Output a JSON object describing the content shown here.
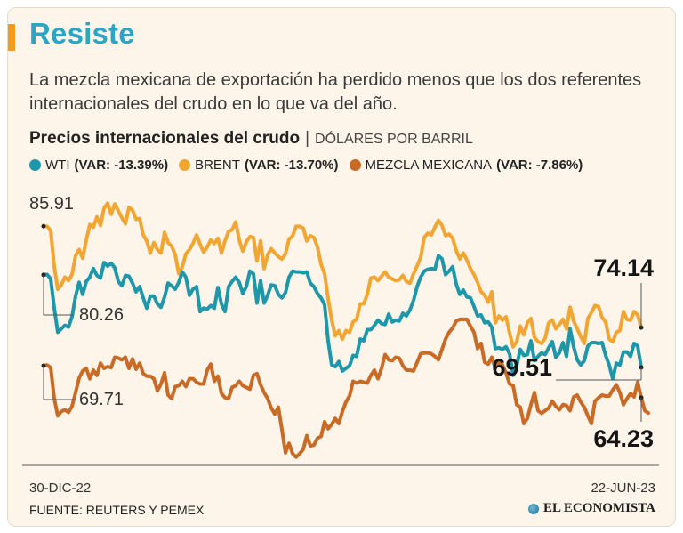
{
  "header": {
    "title": "Resiste",
    "subtitle": "La mezcla mexicana de exportación ha perdido menos que los dos referentes internacionales del crudo en lo que va del año."
  },
  "chart_title": {
    "main": "Precios internacionales del crudo",
    "separator": "|",
    "unit": "DÓLARES POR BARRIL"
  },
  "legend": [
    {
      "name": "WTI",
      "var": "(VAR: -13.39%)",
      "color": "#1f97ab"
    },
    {
      "name": "BRENT",
      "var": "(VAR: -13.70%)",
      "color": "#f3a532"
    },
    {
      "name": "MEZCLA MEXICANA",
      "var": "(VAR: -7.86%)",
      "color": "#c96a25"
    }
  ],
  "chart_data": {
    "type": "line",
    "title": "Precios internacionales del crudo",
    "ylabel": "Dólares por barril",
    "x_start": "30-DIC-22",
    "x_end": "22-JUN-23",
    "ylim": [
      60,
      91
    ],
    "grid": false,
    "series": [
      {
        "name": "BRENT",
        "color": "#f3a532",
        "values": [
          85.91,
          85.9,
          85.4,
          81.2,
          78.6,
          79.1,
          80.0,
          79.6,
          80.3,
          82.5,
          83.2,
          82.2,
          84.3,
          86.1,
          85.8,
          87.0,
          86.0,
          88.0,
          88.6,
          87.3,
          88.5,
          87.7,
          86.9,
          86.2,
          88.1,
          87.8,
          86.7,
          86.8,
          84.9,
          84.2,
          82.8,
          84.0,
          83.2,
          82.8,
          85.2,
          84.0,
          83.6,
          82.6,
          80.4,
          81.2,
          82.7,
          83.2,
          83.9,
          84.9,
          83.8,
          82.9,
          83.5,
          84.3,
          83.9,
          84.5,
          82.8,
          84.2,
          85.3,
          85.5,
          86.4,
          84.3,
          83.0,
          84.1,
          84.7,
          84.6,
          81.9,
          84.2,
          81.0,
          82.6,
          83.3,
          82.8,
          82.4,
          82.1,
          82.7,
          84.4,
          84.8,
          85.9,
          85.9,
          85.7,
          84.2,
          84.8,
          84.6,
          83.5,
          81.5,
          80.4,
          77.5,
          75.0,
          73.2,
          73.8,
          72.8,
          73.8,
          73.6,
          74.8,
          75.1,
          76.9,
          76.9,
          78.0,
          79.9,
          80.0,
          79.6,
          80.1,
          80.6,
          80.0,
          79.8,
          79.6,
          79.7,
          80.2,
          79.5,
          79.3,
          80.4,
          81.3,
          82.3,
          84.6,
          85.1,
          84.9,
          85.8,
          86.6,
          86.0,
          84.8,
          85.0,
          84.5,
          83.1,
          82.1,
          82.8,
          82.0,
          81.0,
          80.3,
          79.4,
          78.3,
          77.9,
          77.1,
          78.3,
          74.7,
          75.5,
          75.0,
          75.4,
          73.5,
          71.9,
          72.5,
          74.3,
          73.3,
          74.7,
          75.2,
          73.0,
          72.5,
          72.3,
          72.9,
          74.7,
          75.0,
          74.0,
          74.5,
          75.1,
          74.0,
          76.5,
          74.9,
          74.0,
          73.1,
          72.3,
          75.2,
          75.9,
          76.7,
          76.6,
          75.3,
          74.8,
          72.8,
          72.5,
          73.6,
          73.8,
          76.0,
          75.1,
          75.0,
          76.0,
          75.6,
          74.14
        ]
      },
      {
        "name": "WTI",
        "color": "#1f97ab",
        "values": [
          80.26,
          80.3,
          79.8,
          76.4,
          73.6,
          74.0,
          74.4,
          74.2,
          75.4,
          77.8,
          79.4,
          78.0,
          79.5,
          80.0,
          81.0,
          80.2,
          79.9,
          81.7,
          81.3,
          81.6,
          81.1,
          79.5,
          79.0,
          80.2,
          80.1,
          79.3,
          78.3,
          78.9,
          77.6,
          76.4,
          77.8,
          77.8,
          76.9,
          76.5,
          77.7,
          79.3,
          79.0,
          78.6,
          79.4,
          80.6,
          80.0,
          77.9,
          78.6,
          78.9,
          76.0,
          76.4,
          76.3,
          76.7,
          76.4,
          78.8,
          76.9,
          76.0,
          78.9,
          79.5,
          80.0,
          79.4,
          78.1,
          78.9,
          80.7,
          80.4,
          77.0,
          79.6,
          77.0,
          77.9,
          79.1,
          79.0,
          78.0,
          77.6,
          78.2,
          80.0,
          80.7,
          80.6,
          80.6,
          80.5,
          80.6,
          79.3,
          78.9,
          78.1,
          77.6,
          76.8,
          72.6,
          69.8,
          69.6,
          70.2,
          69.1,
          69.4,
          69.7,
          70.9,
          70.8,
          72.8,
          72.6,
          73.9,
          73.9,
          74.4,
          75.0,
          74.6,
          74.5,
          75.7,
          74.8,
          75.0,
          74.9,
          75.8,
          75.5,
          76.2,
          77.3,
          78.9,
          80.0,
          80.7,
          80.9,
          81.0,
          80.9,
          82.5,
          82.1,
          80.3,
          80.7,
          81.2,
          79.2,
          78.0,
          78.5,
          77.7,
          77.6,
          76.6,
          75.5,
          75.6,
          74.7,
          74.8,
          74.2,
          71.7,
          71.8,
          71.6,
          71.9,
          71.1,
          68.6,
          69.7,
          71.6,
          70.9,
          71.0,
          72.6,
          70.3,
          70.8,
          71.2,
          71.0,
          71.8,
          72.5,
          70.7,
          71.2,
          72.4,
          70.8,
          74.0,
          71.9,
          70.4,
          69.8,
          70.3,
          72.0,
          72.4,
          72.4,
          72.3,
          72.4,
          70.9,
          69.8,
          68.2,
          70.0,
          69.8,
          71.3,
          71.3,
          70.8,
          72.3,
          72.0,
          69.51
        ]
      },
      {
        "name": "MEZCLA MEXICANA",
        "color": "#c96a25",
        "values": [
          69.71,
          69.8,
          69.5,
          65.9,
          63.9,
          64.4,
          64.6,
          64.3,
          65.0,
          66.6,
          68.3,
          69.1,
          69.4,
          68.2,
          69.2,
          68.6,
          70.0,
          69.4,
          69.6,
          69.5,
          70.7,
          70.6,
          70.4,
          70.7,
          69.4,
          70.5,
          69.3,
          70.0,
          68.8,
          68.5,
          68.5,
          68.2,
          66.8,
          67.6,
          68.9,
          66.3,
          65.9,
          67.3,
          67.4,
          67.9,
          67.3,
          68.2,
          68.2,
          67.8,
          67.6,
          67.6,
          69.2,
          69.9,
          67.9,
          68.5,
          66.5,
          66.0,
          65.9,
          67.2,
          67.4,
          67.9,
          67.4,
          67.2,
          67.0,
          68.6,
          68.8,
          67.5,
          66.6,
          65.9,
          64.8,
          64.1,
          64.9,
          62.3,
          59.6,
          60.7,
          59.5,
          59.1,
          59.5,
          60.0,
          61.6,
          60.4,
          60.5,
          61.3,
          61.5,
          63.2,
          62.4,
          62.9,
          63.6,
          63.0,
          64.4,
          65.5,
          66.2,
          67.9,
          67.7,
          67.9,
          67.8,
          67.7,
          68.6,
          69.2,
          68.2,
          69.4,
          71.0,
          70.4,
          70.3,
          70.7,
          70.6,
          69.7,
          69.2,
          69.2,
          69.1,
          70.1,
          71.1,
          71.2,
          71.2,
          71.1,
          70.8,
          70.4,
          71.6,
          72.8,
          73.6,
          74.1,
          74.9,
          75.1,
          75.1,
          75.1,
          74.3,
          73.6,
          71.7,
          72.3,
          70.1,
          69.9,
          70.7,
          69.4,
          70.2,
          69.8,
          68.9,
          67.6,
          67.4,
          65.2,
          64.9,
          63.0,
          63.6,
          65.2,
          66.6,
          64.5,
          64.2,
          64.5,
          64.8,
          65.6,
          65.0,
          64.6,
          65.2,
          65.1,
          64.5,
          66.1,
          66.3,
          65.5,
          64.9,
          63.9,
          63.0,
          65.6,
          66.0,
          66.3,
          66.2,
          66.2,
          66.9,
          67.5,
          66.6,
          65.2,
          65.9,
          66.5,
          66.1,
          67.8,
          66.0,
          64.5,
          64.23
        ]
      }
    ],
    "annotations": [
      {
        "series": "BRENT",
        "point": "start",
        "label": "85.91"
      },
      {
        "series": "WTI",
        "point": "start",
        "label": "80.26"
      },
      {
        "series": "MEZCLA MEXICANA",
        "point": "start",
        "label": "69.71"
      },
      {
        "series": "BRENT",
        "point": "end",
        "label": "74.14"
      },
      {
        "series": "WTI",
        "point": "end",
        "label": "69.51"
      },
      {
        "series": "MEZCLA MEXICANA",
        "point": "end",
        "label": "64.23"
      }
    ]
  },
  "footer": {
    "date_start": "30-DIC-22",
    "date_end": "22-JUN-23",
    "source": "FUENTE: REUTERS Y PEMEX",
    "brand": "EL ECONOMISTA"
  }
}
